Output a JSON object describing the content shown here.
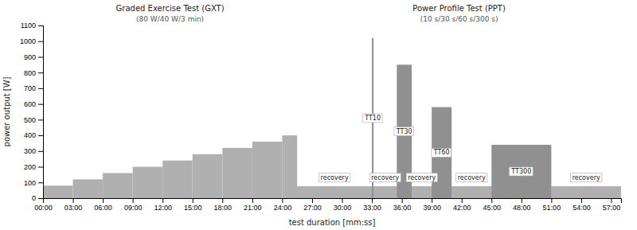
{
  "chart_data": {
    "type": "bar",
    "xlabel": "test duration [mm:ss]",
    "ylabel": "power output [W]",
    "xlim": [
      0,
      3480
    ],
    "xticks": [
      {
        "value": 0,
        "label": "00:00"
      },
      {
        "value": 180,
        "label": "03:00"
      },
      {
        "value": 360,
        "label": "06:00"
      },
      {
        "value": 540,
        "label": "09:00"
      },
      {
        "value": 720,
        "label": "12:00"
      },
      {
        "value": 900,
        "label": "15:00"
      },
      {
        "value": 1080,
        "label": "18:00"
      },
      {
        "value": 1260,
        "label": "21:00"
      },
      {
        "value": 1440,
        "label": "24:00"
      },
      {
        "value": 1620,
        "label": "27:00"
      },
      {
        "value": 1800,
        "label": "30:00"
      },
      {
        "value": 1980,
        "label": "33:00"
      },
      {
        "value": 2160,
        "label": "36:00"
      },
      {
        "value": 2340,
        "label": "39:00"
      },
      {
        "value": 2520,
        "label": "42:00"
      },
      {
        "value": 2700,
        "label": "45:00"
      },
      {
        "value": 2880,
        "label": "48:00"
      },
      {
        "value": 3060,
        "label": "51:00"
      },
      {
        "value": 3240,
        "label": "54:00"
      },
      {
        "value": 3420,
        "label": "57:00"
      }
    ],
    "ylim": [
      0,
      1100
    ],
    "yticks": [
      0,
      100,
      200,
      300,
      400,
      500,
      600,
      700,
      800,
      900,
      1000,
      1100
    ],
    "grid": false,
    "series": [
      {
        "color": "#b0b0b0",
        "values": [
          80,
          120,
          160,
          200,
          240,
          280,
          320,
          360,
          400
        ],
        "x_start": [
          0,
          180,
          360,
          540,
          720,
          900,
          1080,
          1260,
          1440
        ],
        "x_end": [
          180,
          360,
          540,
          720,
          900,
          1080,
          1260,
          1440,
          1530
        ]
      },
      {
        "color": "#b0b0b0",
        "values": [
          75
        ],
        "x_start": [
          1530
        ],
        "x_end": [
          3480
        ]
      },
      {
        "colors": [
          "#b0b0b0",
          "#909090",
          "#b0b0b0",
          "#909090",
          "#b0b0b0",
          "#909090",
          "#b0b0b0",
          "#909090",
          "#b0b0b0"
        ],
        "values": [
          75,
          1020,
          75,
          850,
          75,
          580,
          75,
          340,
          75
        ],
        "x_start": [
          1530,
          1980,
          1990,
          2130,
          2220,
          2340,
          2460,
          2700,
          3060
        ],
        "x_end": [
          1980,
          1990,
          2130,
          2220,
          2340,
          2460,
          2700,
          3060,
          3480
        ],
        "labels": [
          "recovery",
          "TT10",
          "recovery",
          "TT30",
          "recovery",
          "TT60",
          "recovery",
          "TT300",
          "recovery"
        ]
      }
    ],
    "annotations": [
      {
        "text": "Graded Exercise Test (GXT)",
        "subtext": "(80 W/40 W/3 min)"
      },
      {
        "text": "Power Profile Test (PPT)",
        "subtext": "(10 s/30 s/60 s/300 s)"
      }
    ]
  }
}
